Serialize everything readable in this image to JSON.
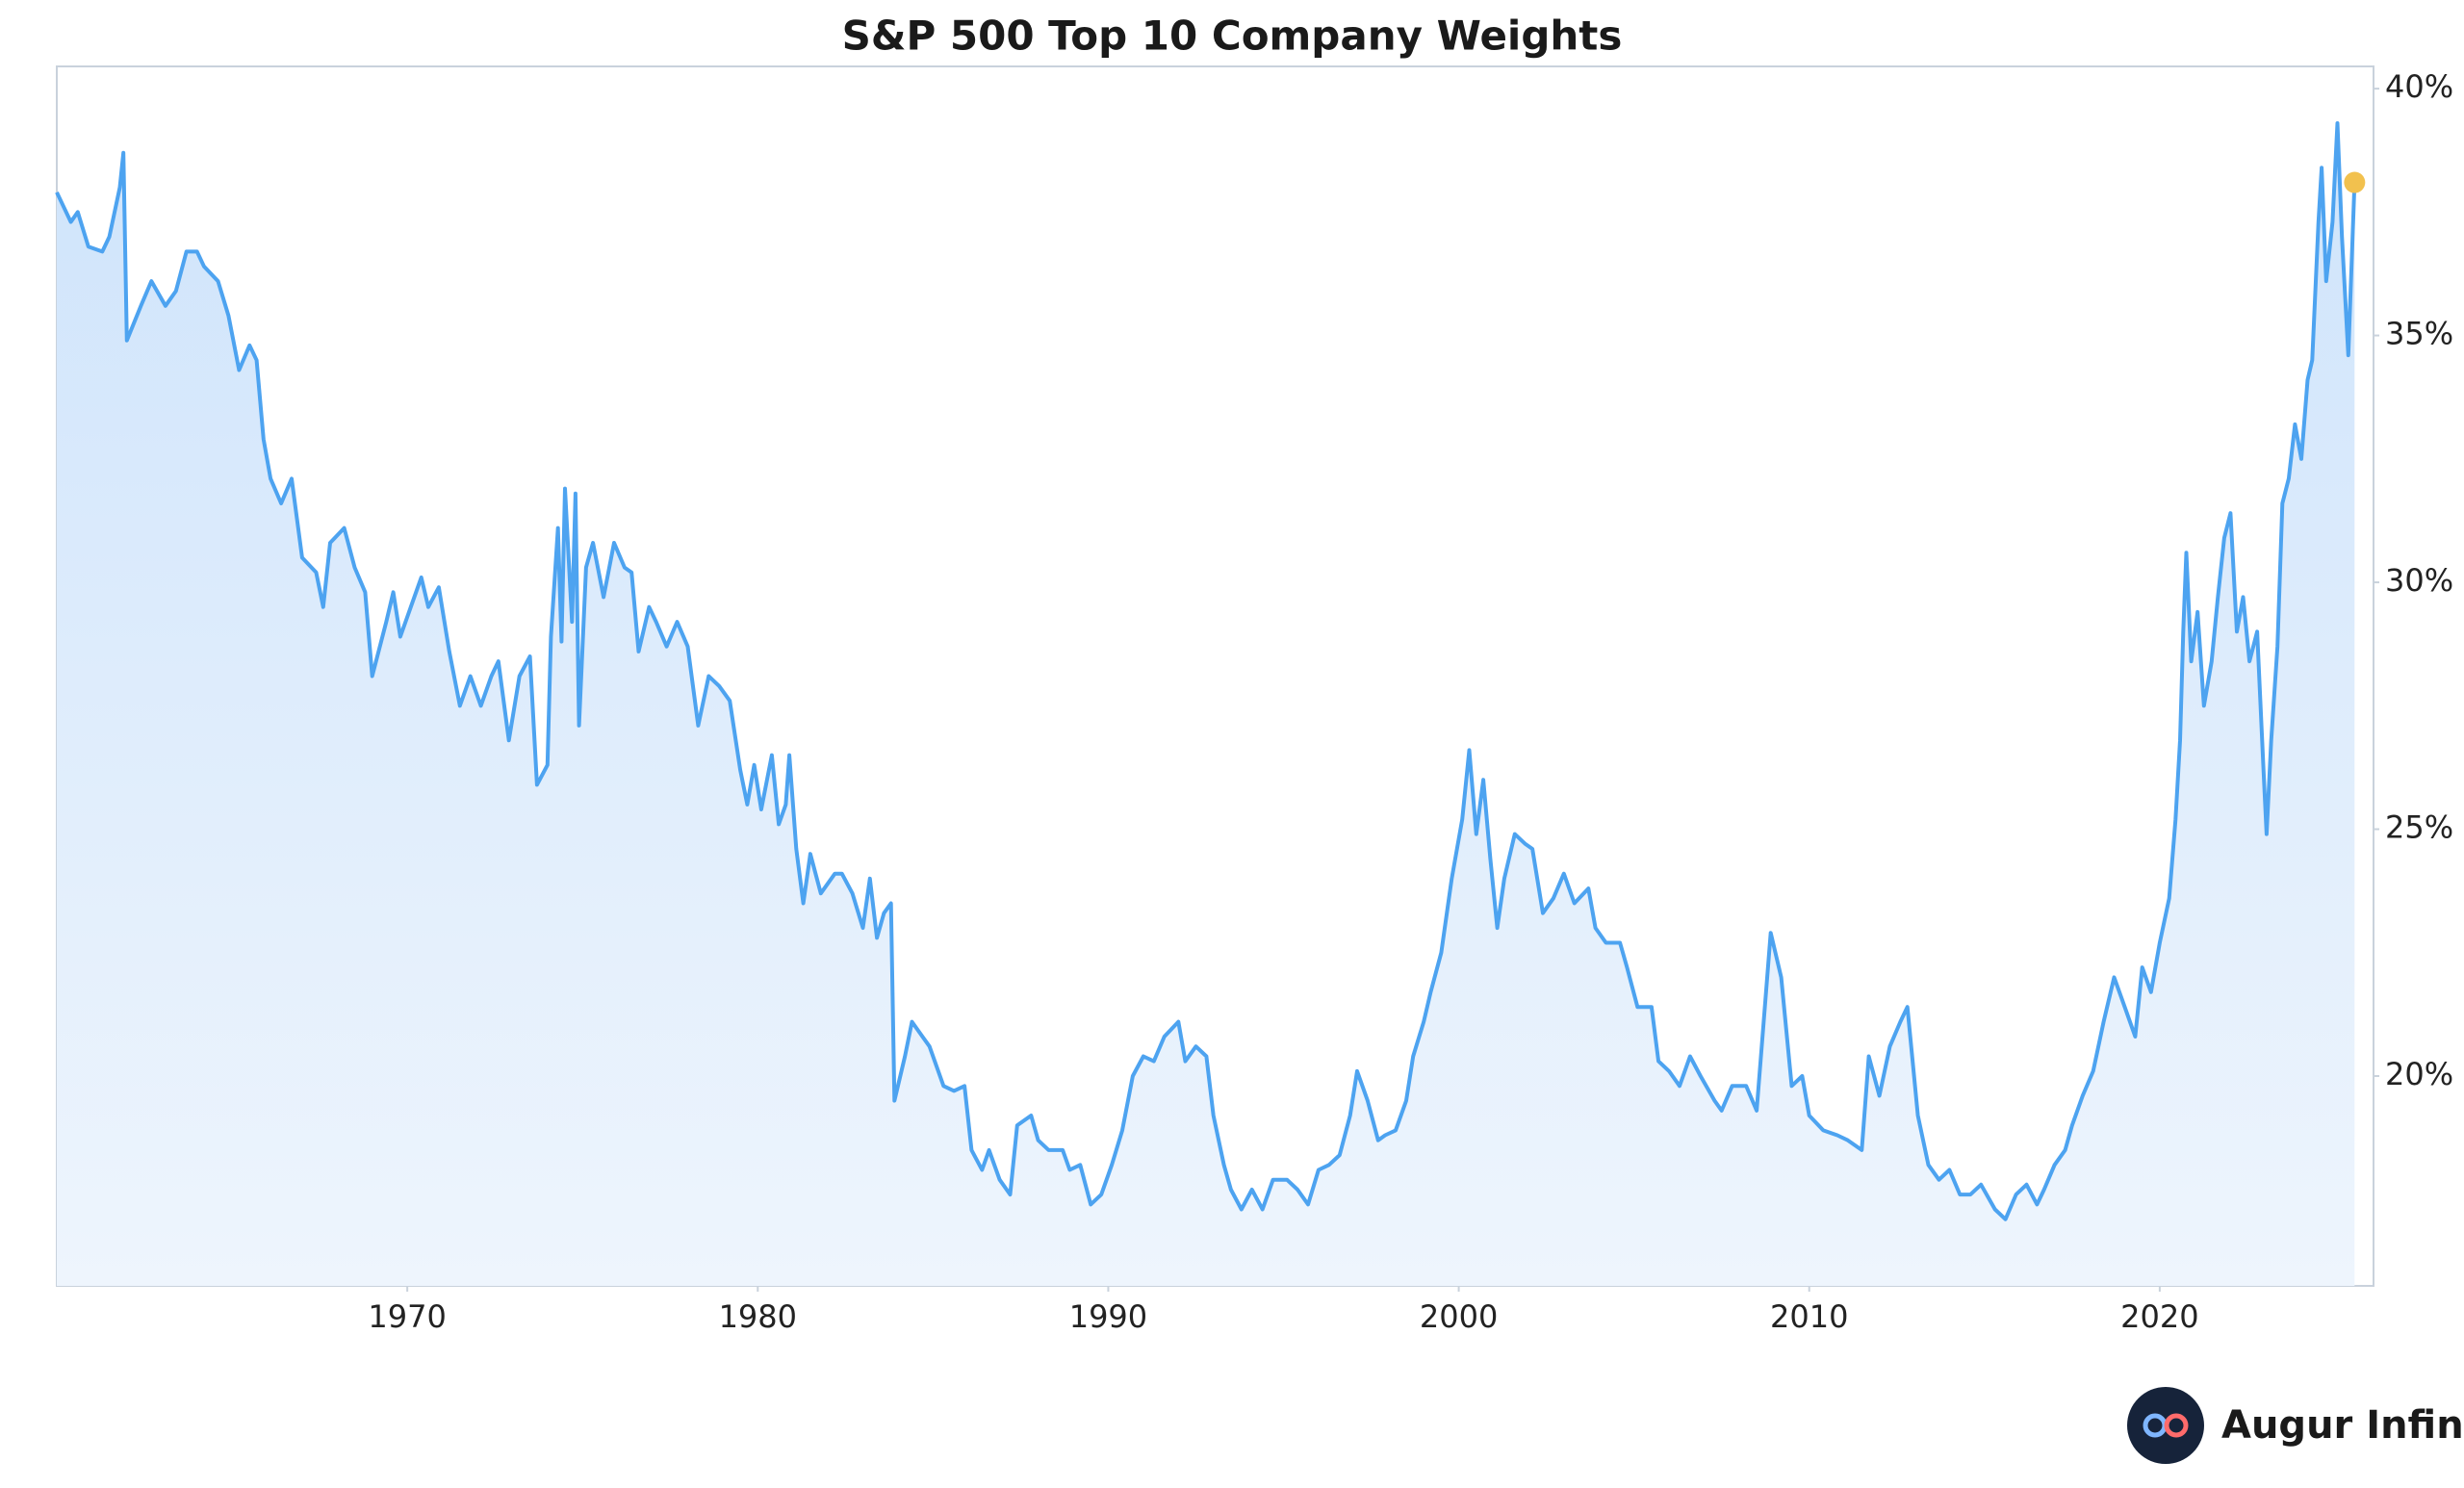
{
  "chart_data": {
    "type": "line",
    "title": "S&P 500 Top 10 Company Weights",
    "watermark": "Augur Infinity",
    "color": "#4da3f0",
    "last_point_color": "#f2c14e",
    "grid": false,
    "xlim": [
      1960,
      2026.1
    ],
    "xticks": [
      1970,
      1980,
      1990,
      2000,
      2010,
      2020
    ],
    "ylim": [
      15.75,
      40.45
    ],
    "yticks": [
      {
        "value": 20,
        "label": "20%"
      },
      {
        "value": 25,
        "label": "25%"
      },
      {
        "value": 30,
        "label": "30%"
      },
      {
        "value": 35,
        "label": "35%"
      },
      {
        "value": 40,
        "label": "40%"
      }
    ],
    "x": [
      1960.0,
      1960.4,
      1960.6,
      1960.9,
      1961.3,
      1961.5,
      1961.8,
      1961.9,
      1962.0,
      1962.4,
      1962.7,
      1963.1,
      1963.4,
      1963.7,
      1964.0,
      1964.2,
      1964.6,
      1964.9,
      1965.2,
      1965.5,
      1965.7,
      1965.9,
      1966.1,
      1966.4,
      1966.7,
      1967.0,
      1967.4,
      1967.6,
      1967.8,
      1968.2,
      1968.5,
      1968.8,
      1969.0,
      1969.4,
      1969.6,
      1969.8,
      1970.1,
      1970.4,
      1970.6,
      1970.9,
      1971.2,
      1971.5,
      1971.8,
      1972.1,
      1972.4,
      1972.6,
      1972.9,
      1973.2,
      1973.5,
      1973.7,
      1974.0,
      1974.1,
      1974.3,
      1974.4,
      1974.5,
      1974.7,
      1974.8,
      1974.9,
      1975.1,
      1975.3,
      1975.6,
      1975.9,
      1976.2,
      1976.4,
      1976.6,
      1976.9,
      1977.1,
      1977.4,
      1977.7,
      1978.0,
      1978.3,
      1978.6,
      1978.9,
      1979.2,
      1979.5,
      1979.7,
      1979.9,
      1980.1,
      1980.4,
      1980.6,
      1980.8,
      1980.9,
      1981.1,
      1981.3,
      1981.5,
      1981.8,
      1982.2,
      1982.4,
      1982.7,
      1983.0,
      1983.2,
      1983.4,
      1983.6,
      1983.8,
      1983.9,
      1984.2,
      1984.4,
      1984.7,
      1984.9,
      1985.3,
      1985.6,
      1985.9,
      1986.1,
      1986.4,
      1986.6,
      1986.9,
      1987.2,
      1987.4,
      1987.8,
      1988.0,
      1988.3,
      1988.7,
      1988.9,
      1989.2,
      1989.5,
      1989.8,
      1990.1,
      1990.4,
      1990.7,
      1991.0,
      1991.3,
      1991.6,
      1992.0,
      1992.2,
      1992.5,
      1992.8,
      1993.0,
      1993.3,
      1993.5,
      1993.8,
      1994.1,
      1994.4,
      1994.7,
      1995.1,
      1995.4,
      1995.7,
      1996.0,
      1996.3,
      1996.6,
      1996.9,
      1997.1,
      1997.4,
      1997.7,
      1997.9,
      1998.2,
      1998.5,
      1998.7,
      1999.0,
      1999.2,
      1999.5,
      1999.8,
      2000.1,
      2000.3,
      2000.5,
      2000.7,
      2000.9,
      2001.1,
      2001.3,
      2001.6,
      2001.9,
      2002.1,
      2002.4,
      2002.7,
      2003.0,
      2003.3,
      2003.7,
      2003.9,
      2004.2,
      2004.6,
      2004.8,
      2005.1,
      2005.5,
      2005.7,
      2006.0,
      2006.3,
      2006.6,
      2006.9,
      2007.3,
      2007.5,
      2007.8,
      2008.2,
      2008.5,
      2008.7,
      2008.9,
      2009.2,
      2009.5,
      2009.8,
      2010.0,
      2010.4,
      2010.8,
      2011.1,
      2011.5,
      2011.7,
      2012.0,
      2012.3,
      2012.6,
      2012.8,
      2013.1,
      2013.4,
      2013.7,
      2014.0,
      2014.3,
      2014.6,
      2014.9,
      2015.3,
      2015.6,
      2015.9,
      2016.2,
      2016.5,
      2016.7,
      2017.0,
      2017.3,
      2017.5,
      2017.8,
      2018.1,
      2018.4,
      2018.7,
      2019.0,
      2019.3,
      2019.5,
      2019.75,
      2020.0,
      2020.27,
      2020.45,
      2020.58,
      2020.67,
      2020.76,
      2020.9,
      2021.08,
      2021.26,
      2021.48,
      2021.66,
      2021.84,
      2022.02,
      2022.2,
      2022.38,
      2022.56,
      2022.78,
      2022.96,
      2023.05,
      2023.18,
      2023.36,
      2023.5,
      2023.68,
      2023.86,
      2024.04,
      2024.22,
      2024.35,
      2024.53,
      2024.62,
      2024.75,
      2024.93,
      2025.07,
      2025.2,
      2025.38,
      2025.56
    ],
    "values": [
      37.9,
      37.3,
      37.5,
      36.8,
      36.7,
      37.0,
      38.0,
      38.7,
      34.9,
      35.6,
      36.1,
      35.6,
      35.9,
      36.7,
      36.7,
      36.4,
      36.1,
      35.4,
      34.3,
      34.8,
      34.5,
      32.9,
      32.1,
      31.6,
      32.1,
      30.5,
      30.2,
      29.5,
      30.8,
      31.1,
      30.3,
      29.8,
      28.1,
      29.2,
      29.8,
      28.9,
      29.5,
      30.1,
      29.5,
      29.9,
      28.6,
      27.5,
      28.1,
      27.5,
      28.1,
      28.4,
      26.8,
      28.1,
      28.5,
      25.9,
      26.3,
      28.9,
      31.1,
      28.8,
      31.9,
      29.2,
      31.8,
      27.1,
      30.3,
      30.8,
      29.7,
      30.8,
      30.3,
      30.2,
      28.6,
      29.5,
      29.2,
      28.7,
      29.2,
      28.7,
      27.1,
      28.1,
      27.9,
      27.6,
      26.2,
      25.5,
      26.3,
      25.4,
      26.5,
      25.1,
      25.5,
      26.5,
      24.6,
      23.5,
      24.5,
      23.7,
      24.1,
      24.1,
      23.7,
      23.0,
      24.0,
      22.8,
      23.3,
      23.5,
      19.5,
      20.4,
      21.1,
      20.8,
      20.6,
      19.8,
      19.7,
      19.8,
      18.5,
      18.1,
      18.5,
      17.9,
      17.6,
      19.0,
      19.2,
      18.7,
      18.5,
      18.5,
      18.1,
      18.2,
      17.4,
      17.6,
      18.2,
      18.9,
      20.0,
      20.4,
      20.3,
      20.8,
      21.1,
      20.3,
      20.6,
      20.4,
      19.2,
      18.2,
      17.7,
      17.3,
      17.7,
      17.3,
      17.9,
      17.9,
      17.7,
      17.4,
      18.1,
      18.2,
      18.4,
      19.2,
      20.1,
      19.5,
      18.7,
      18.8,
      18.9,
      19.5,
      20.4,
      21.1,
      21.7,
      22.5,
      24.0,
      25.2,
      26.6,
      24.9,
      26.0,
      24.4,
      23.0,
      24.0,
      24.9,
      24.7,
      24.6,
      23.3,
      23.6,
      24.1,
      23.5,
      23.8,
      23.0,
      22.7,
      22.7,
      22.2,
      21.4,
      21.4,
      20.3,
      20.1,
      19.8,
      20.4,
      20.0,
      19.5,
      19.3,
      19.8,
      19.8,
      19.3,
      21.1,
      22.9,
      22.0,
      19.8,
      20.0,
      19.2,
      18.9,
      18.8,
      18.7,
      18.5,
      20.4,
      19.6,
      20.6,
      21.1,
      21.4,
      19.2,
      18.2,
      17.9,
      18.1,
      17.6,
      17.6,
      17.8,
      17.3,
      17.1,
      17.6,
      17.8,
      17.4,
      17.7,
      18.2,
      18.5,
      19.0,
      19.6,
      20.1,
      21.1,
      22.0,
      21.4,
      20.8,
      22.2,
      21.7,
      22.7,
      23.6,
      25.2,
      26.8,
      29.0,
      30.6,
      28.4,
      29.4,
      27.5,
      28.4,
      29.7,
      30.9,
      31.4,
      29.0,
      29.7,
      28.4,
      29.0,
      26.2,
      24.9,
      26.8,
      28.7,
      31.6,
      32.1,
      33.2,
      32.5,
      34.1,
      34.5,
      37.3,
      38.4,
      36.1,
      37.3,
      39.3,
      37.0,
      34.6,
      38.1
    ]
  }
}
